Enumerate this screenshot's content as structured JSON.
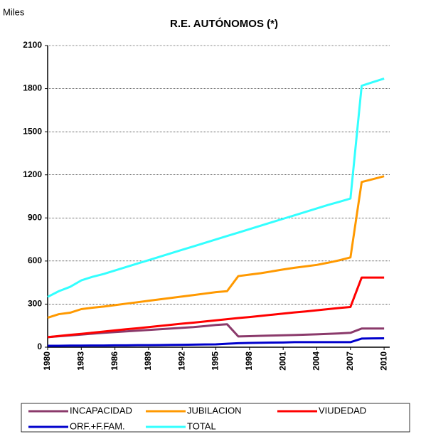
{
  "chart_data": {
    "type": "line",
    "title": "R.E. AUTÓNOMOS (*)",
    "y_label": "Miles",
    "x": [
      1980,
      1981,
      1982,
      1983,
      1984,
      1985,
      1986,
      1987,
      1988,
      1989,
      1990,
      1991,
      1992,
      1993,
      1994,
      1995,
      1996,
      1997,
      1998,
      1999,
      2000,
      2001,
      2002,
      2003,
      2004,
      2005,
      2006,
      2007,
      2008,
      2009,
      2010
    ],
    "xlim": [
      1980,
      2010.5
    ],
    "xticks": [
      1980,
      1983,
      1986,
      1989,
      1992,
      1995,
      1998,
      2001,
      2004,
      2007,
      2010
    ],
    "ylim": [
      0,
      2100
    ],
    "yticks": [
      0,
      300,
      600,
      900,
      1200,
      1500,
      1800,
      2100
    ],
    "grid": true,
    "legend": "bottom",
    "series": [
      {
        "name": "INCAPACIDAD",
        "color": "#8b3a6b",
        "values": [
          70,
          76,
          82,
          88,
          94,
          100,
          105,
          110,
          115,
          120,
          125,
          130,
          135,
          140,
          147,
          155,
          160,
          75,
          77,
          79,
          81,
          83,
          85,
          87,
          90,
          93,
          96,
          100,
          130,
          130,
          130
        ]
      },
      {
        "name": "JUBILACION",
        "color": "#ff9900",
        "values": [
          205,
          230,
          240,
          265,
          275,
          283,
          293,
          303,
          313,
          323,
          333,
          343,
          353,
          363,
          373,
          383,
          390,
          495,
          505,
          515,
          528,
          541,
          553,
          563,
          573,
          588,
          605,
          625,
          1150,
          1170,
          1190
        ]
      },
      {
        "name": "VIUDEDAD",
        "color": "#ff0000",
        "values": [
          70,
          78,
          86,
          93,
          101,
          109,
          117,
          125,
          132,
          140,
          148,
          156,
          164,
          171,
          179,
          187,
          195,
          203,
          210,
          218,
          226,
          234,
          242,
          249,
          257,
          265,
          273,
          280,
          485,
          485,
          485
        ]
      },
      {
        "name": "ORF.+F.FAM.",
        "color": "#0000cc",
        "values": [
          10,
          10,
          11,
          11,
          12,
          12,
          13,
          13,
          14,
          14,
          15,
          16,
          17,
          18,
          19,
          20,
          24,
          28,
          30,
          31,
          32,
          33,
          35,
          35,
          35,
          35,
          35,
          35,
          60,
          61,
          62
        ]
      },
      {
        "name": "TOTAL",
        "color": "#33ffff",
        "values": [
          350,
          390,
          420,
          465,
          490,
          510,
          534,
          558,
          582,
          606,
          630,
          654,
          678,
          702,
          726,
          750,
          774,
          798,
          822,
          846,
          870,
          894,
          918,
          942,
          966,
          990,
          1012,
          1035,
          1820,
          1845,
          1870
        ]
      }
    ]
  }
}
